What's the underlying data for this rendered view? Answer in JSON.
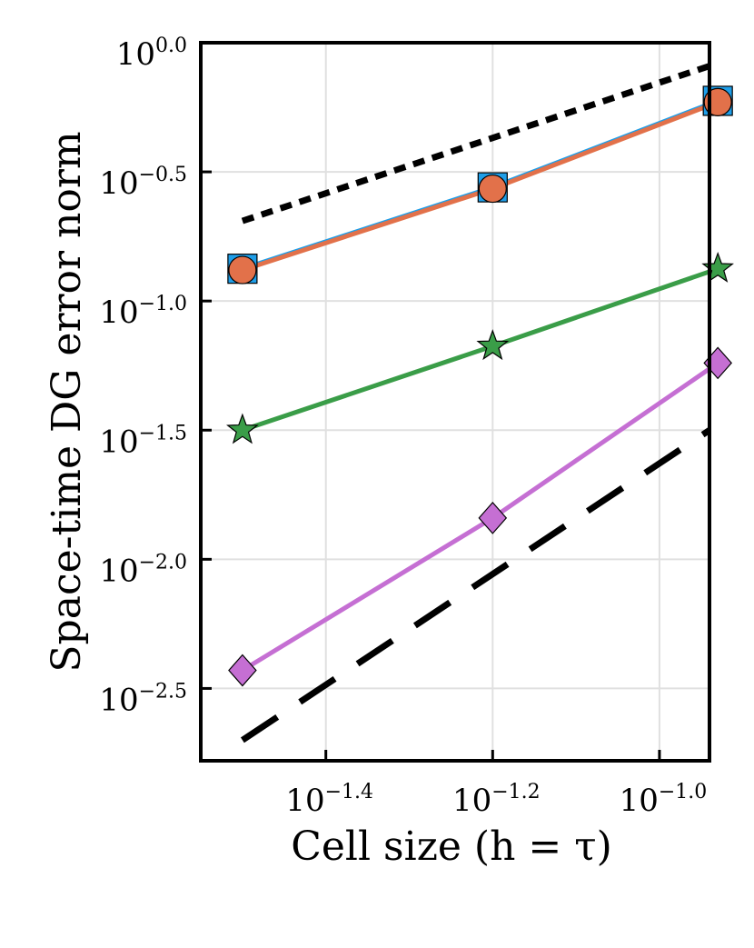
{
  "chart_data": {
    "type": "line",
    "xscale": "log10",
    "yscale": "log10",
    "xlabel": "Cell size (h = τ)",
    "ylabel": "Space-time DG error norm",
    "xlim_log10": [
      -1.55,
      -0.94
    ],
    "ylim_log10": [
      -2.78,
      0.0
    ],
    "x_ticks": [
      {
        "log": -1.4,
        "base": "10",
        "exp": "−1.4"
      },
      {
        "log": -1.2,
        "base": "10",
        "exp": "−1.2"
      },
      {
        "log": -1.0,
        "base": "10",
        "exp": "−1.0"
      }
    ],
    "y_ticks": [
      {
        "log": 0.0,
        "base": "10",
        "exp": "0.0"
      },
      {
        "log": -0.5,
        "base": "10",
        "exp": "−0.5"
      },
      {
        "log": -1.0,
        "base": "10",
        "exp": "−1.0"
      },
      {
        "log": -1.5,
        "base": "10",
        "exp": "−1.5"
      },
      {
        "log": -2.0,
        "base": "10",
        "exp": "−2.0"
      },
      {
        "log": -2.5,
        "base": "10",
        "exp": "−2.5"
      }
    ],
    "grid": true,
    "legend": "none",
    "series": [
      {
        "color": "#1f9ee8",
        "marker": "square",
        "line": "solid",
        "x_log10": [
          -1.5,
          -1.2,
          -0.93
        ],
        "y_log10": [
          -0.875,
          -0.56,
          -0.225
        ]
      },
      {
        "color": "#e2714a",
        "marker": "circle",
        "line": "solid",
        "x_log10": [
          -1.5,
          -1.2,
          -0.93
        ],
        "y_log10": [
          -0.88,
          -0.565,
          -0.23
        ]
      },
      {
        "color": "#3a9d48",
        "marker": "star",
        "line": "solid",
        "x_log10": [
          -1.5,
          -1.2,
          -0.93
        ],
        "y_log10": [
          -1.5,
          -1.175,
          -0.875
        ]
      },
      {
        "color": "#c56fd3",
        "marker": "diamond",
        "line": "solid",
        "x_log10": [
          -1.5,
          -1.2,
          -0.93
        ],
        "y_log10": [
          -2.43,
          -1.84,
          -1.24
        ]
      },
      {
        "color": "#000000",
        "marker": "none",
        "line": "dotted",
        "x_log10": [
          -1.5,
          -0.94
        ],
        "y_log10": [
          -0.69,
          -0.09
        ]
      },
      {
        "color": "#000000",
        "marker": "none",
        "line": "dashed",
        "x_log10": [
          -1.5,
          -0.94
        ],
        "y_log10": [
          -2.7,
          -1.5
        ]
      }
    ]
  }
}
